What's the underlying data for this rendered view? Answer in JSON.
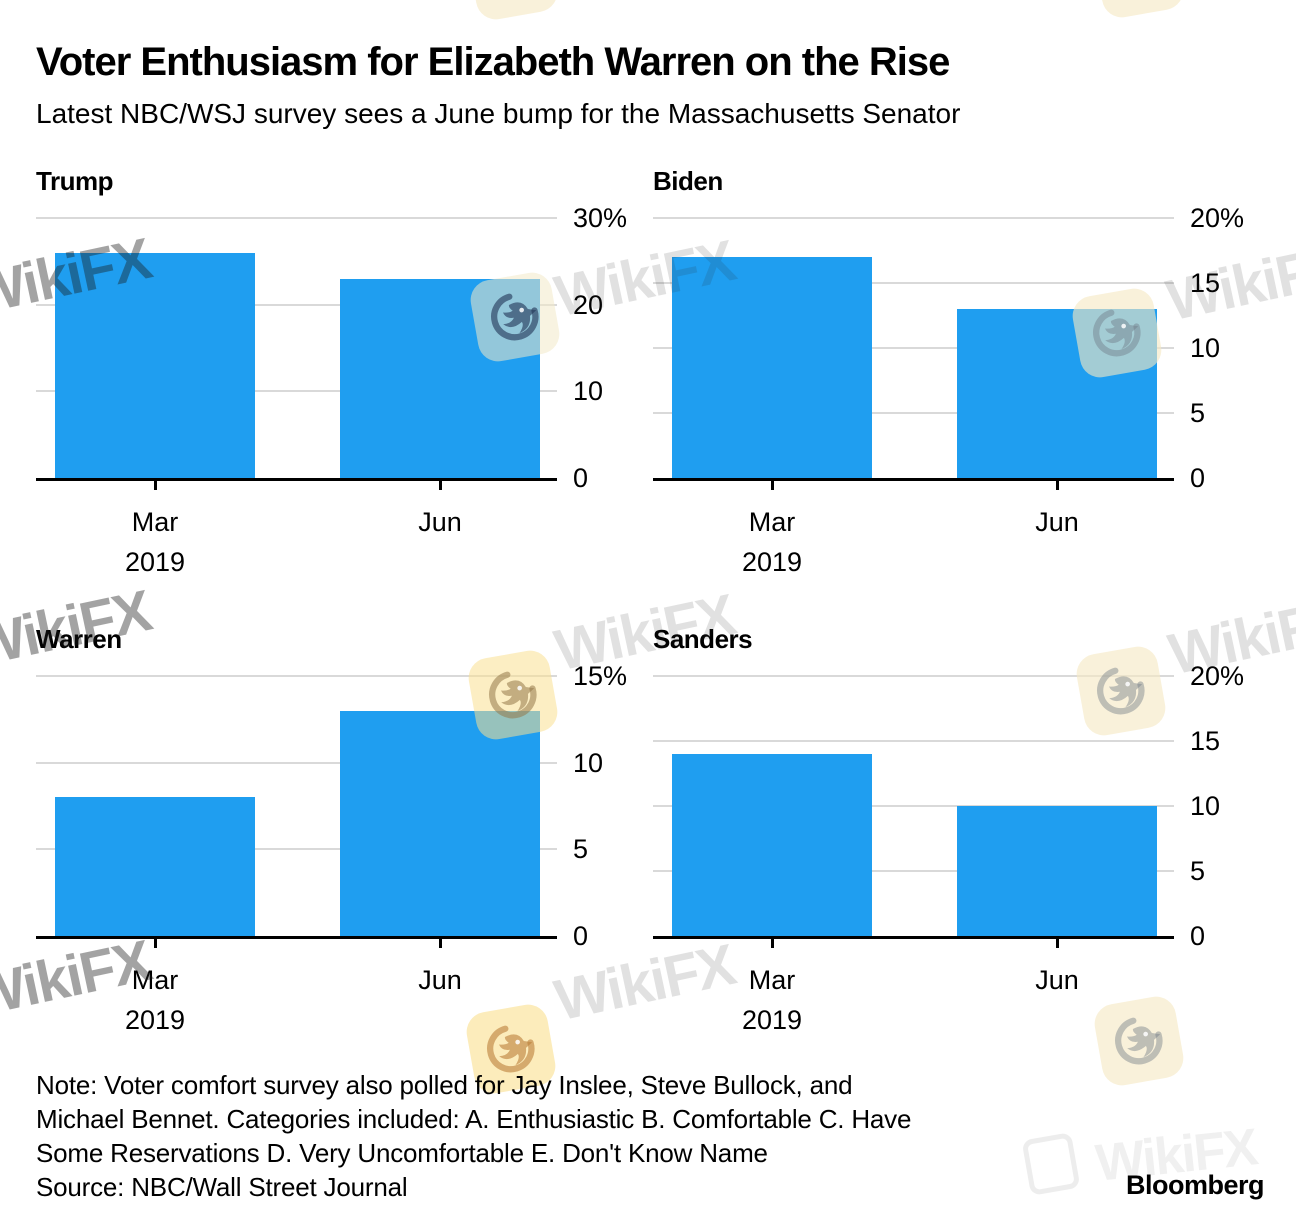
{
  "header": {
    "title": "Voter Enthusiasm for Elizabeth Warren on the Rise",
    "subtitle": "Latest NBC/WSJ survey sees a June bump for the Massachusetts Senator"
  },
  "chart_data": [
    {
      "type": "bar",
      "name": "trump",
      "title": "Trump",
      "categories": [
        "Mar",
        "Jun"
      ],
      "year_label": "2019",
      "values": [
        26,
        23
      ],
      "unit": "%",
      "ymax": 30,
      "ylim": [
        0,
        30
      ],
      "yticks": [
        {
          "value": 30,
          "label": "30%"
        },
        {
          "value": 20,
          "label": "20"
        },
        {
          "value": 10,
          "label": "10"
        },
        {
          "value": 0,
          "label": "0"
        }
      ]
    },
    {
      "type": "bar",
      "name": "biden",
      "title": "Biden",
      "categories": [
        "Mar",
        "Jun"
      ],
      "year_label": "2019",
      "values": [
        17,
        13
      ],
      "unit": "%",
      "ymax": 20,
      "ylim": [
        0,
        20
      ],
      "yticks": [
        {
          "value": 20,
          "label": "20%"
        },
        {
          "value": 15,
          "label": "15"
        },
        {
          "value": 10,
          "label": "10"
        },
        {
          "value": 5,
          "label": "5"
        },
        {
          "value": 0,
          "label": "0"
        }
      ]
    },
    {
      "type": "bar",
      "name": "warren",
      "title": "Warren",
      "categories": [
        "Mar",
        "Jun"
      ],
      "year_label": "2019",
      "values": [
        8,
        13
      ],
      "unit": "%",
      "ymax": 15,
      "ylim": [
        0,
        15
      ],
      "yticks": [
        {
          "value": 15,
          "label": "15%"
        },
        {
          "value": 10,
          "label": "10"
        },
        {
          "value": 5,
          "label": "5"
        },
        {
          "value": 0,
          "label": "0"
        }
      ]
    },
    {
      "type": "bar",
      "name": "sanders",
      "title": "Sanders",
      "categories": [
        "Mar",
        "Jun"
      ],
      "year_label": "2019",
      "values": [
        14,
        10
      ],
      "unit": "%",
      "ymax": 20,
      "ylim": [
        0,
        20
      ],
      "yticks": [
        {
          "value": 20,
          "label": "20%"
        },
        {
          "value": 15,
          "label": "15"
        },
        {
          "value": 10,
          "label": "10"
        },
        {
          "value": 5,
          "label": "5"
        },
        {
          "value": 0,
          "label": "0"
        }
      ]
    }
  ],
  "footer": {
    "note_lines": [
      "Note: Voter comfort survey also polled for Jay Inslee, Steve Bullock, and",
      "Michael Bennet. Categories included: A. Enthusiastic B. Comfortable C. Have",
      "Some Reservations D. Very Uncomfortable E. Don't Know Name"
    ],
    "source": "Source: NBC/Wall Street Journal",
    "brand": "Bloomberg"
  },
  "watermark": {
    "text": "WikiFX",
    "logo": "wikifx-eagle-logo"
  },
  "colors": {
    "bar": "#1f9ef0",
    "gridline": "#d9d9d9",
    "axis": "#000000",
    "text": "#000000"
  }
}
